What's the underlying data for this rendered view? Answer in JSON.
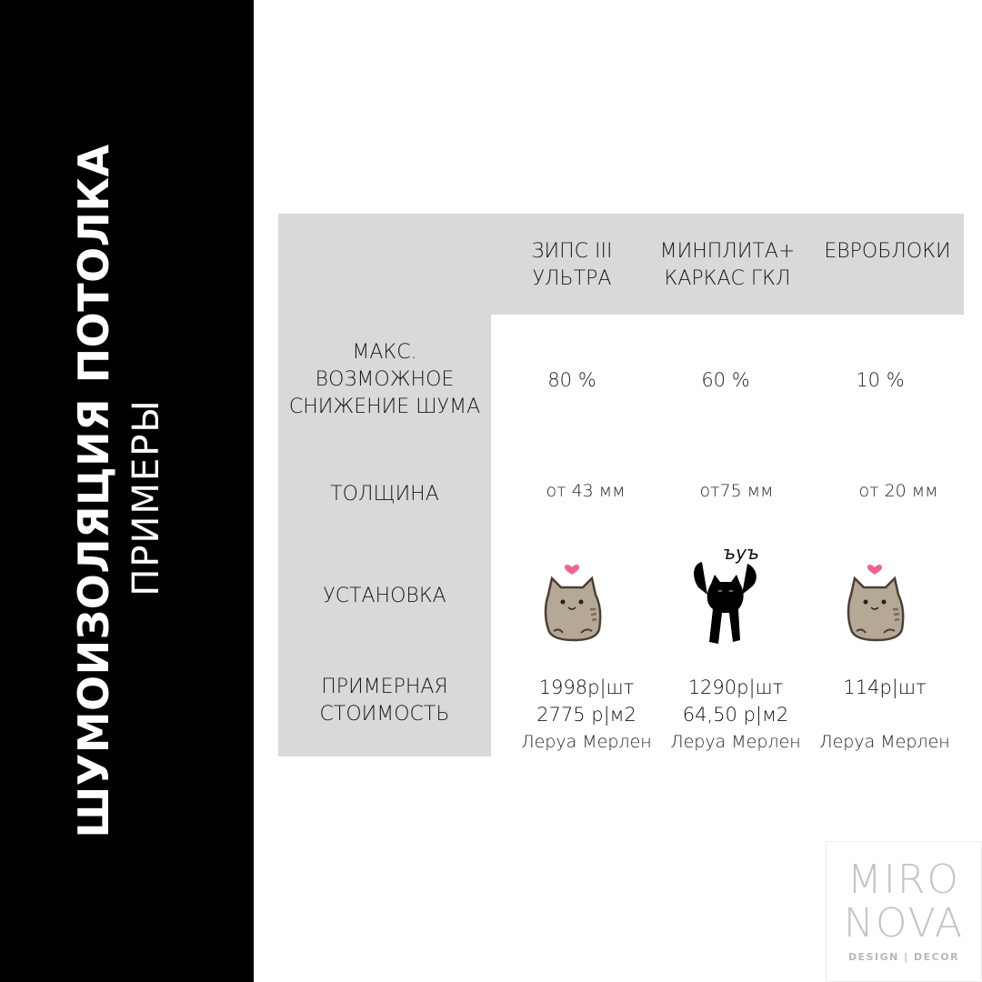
{
  "sidebar": {
    "title": "ШУМОИЗОЛЯЦИЯ ПОТОЛКА",
    "subtitle": "ПРИМЕРЫ"
  },
  "table": {
    "columns": [
      {
        "line1": "ЗИПС III",
        "line2": "УЛЬТРА"
      },
      {
        "line1": "МИНПЛИТА+",
        "line2": "КАРКАС ГКЛ"
      },
      {
        "line1": "ЕВРОБЛОКИ",
        "line2": ""
      }
    ],
    "rows": {
      "noise": {
        "line1": "МАКС.",
        "line2": "ВОЗМОЖНОЕ",
        "line3": "СНИЖЕНИЕ ШУМА",
        "values": [
          "80 %",
          "60 %",
          "10 %"
        ]
      },
      "thickness": {
        "label": "ТОЛЩИНА",
        "values": [
          "от 43 мм",
          "от75 мм",
          "от 20 мм"
        ]
      },
      "install": {
        "label": "УСТАНОВКА",
        "icons": [
          "pusheen-cat-icon",
          "black-cat-icon",
          "pusheen-cat-icon"
        ],
        "caption": "ъуъ"
      },
      "cost": {
        "line1": "ПРИМЕРНАЯ",
        "line2": "СТОИМОСТЬ",
        "values": [
          {
            "per_piece": "1998р|шт",
            "per_m2": "2775 р|м2",
            "store": "Леруа Мерлен"
          },
          {
            "per_piece": "1290р|шт",
            "per_m2": "64,50 р|м2",
            "store": "Леруа Мерлен"
          },
          {
            "per_piece": "114р|шт",
            "per_m2": "",
            "store": "Леруа Мерлен"
          }
        ]
      }
    }
  },
  "logo": {
    "line1": "MIRO",
    "line2": "NOVA",
    "line3": "DESIGN | DECOR"
  },
  "colors": {
    "sidebar": "#000000",
    "table_header": "#d9d9d9",
    "background": "#ffffff",
    "cat_body": "#b5a896",
    "heart": "#f06292"
  }
}
